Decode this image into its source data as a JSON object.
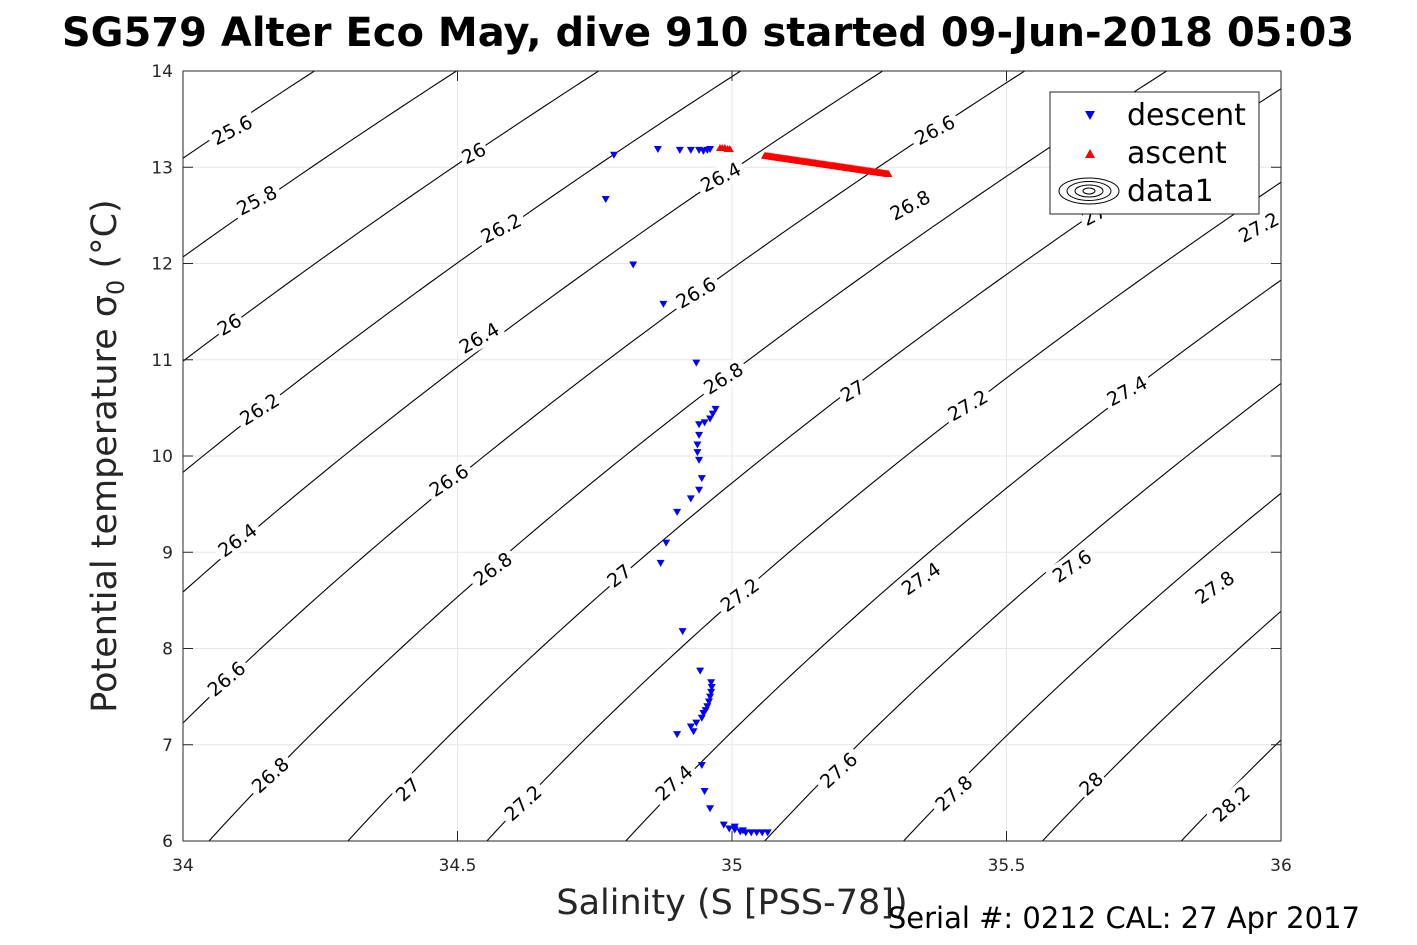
{
  "chart_data": {
    "type": "scatter",
    "title": "SG579 Alter Eco May, dive 910 started 09-Jun-2018 05:03",
    "xlabel": "Salinity (S [PSS-78])",
    "ylabel_main": "Potential temperature ",
    "ylabel_sigma": "σ",
    "ylabel_sub": "0",
    "ylabel_unit": " (°C)",
    "xlim": [
      34,
      36
    ],
    "ylim": [
      6,
      14
    ],
    "xticks": [
      34,
      34.5,
      35,
      35.5,
      36
    ],
    "xtick_labels": [
      "34",
      "34.5",
      "35",
      "35.5",
      "36"
    ],
    "yticks": [
      6,
      7,
      8,
      9,
      10,
      11,
      12,
      13,
      14
    ],
    "ytick_labels": [
      "6",
      "7",
      "8",
      "9",
      "10",
      "11",
      "12",
      "13",
      "14"
    ],
    "grid": true,
    "legend_position": "top-right",
    "legend": [
      "descent",
      "ascent",
      "data1"
    ],
    "contour_levels": [
      25.6,
      25.8,
      26.0,
      26.2,
      26.4,
      26.6,
      26.8,
      27.0,
      27.2,
      27.4,
      27.6,
      27.8,
      28.0,
      28.2
    ],
    "contour_labels": [
      {
        "text": "25.6",
        "s": 34.09,
        "t": 13.38,
        "angle": -27
      },
      {
        "text": "26",
        "s": 34.53,
        "t": 13.14,
        "angle": -27
      },
      {
        "text": "25.8",
        "s": 34.135,
        "t": 12.65,
        "angle": -27
      },
      {
        "text": "26.2",
        "s": 34.58,
        "t": 12.36,
        "angle": -27
      },
      {
        "text": "26.4",
        "s": 34.98,
        "t": 12.89,
        "angle": -27
      },
      {
        "text": "26.6",
        "s": 35.37,
        "t": 13.38,
        "angle": -27
      },
      {
        "text": "26",
        "s": 34.085,
        "t": 11.36,
        "angle": -30
      },
      {
        "text": "26.4",
        "s": 34.54,
        "t": 11.22,
        "angle": -30
      },
      {
        "text": "26.6",
        "s": 34.935,
        "t": 11.69,
        "angle": -30
      },
      {
        "text": "26.8",
        "s": 35.325,
        "t": 12.6,
        "angle": -28
      },
      {
        "text": "26.2",
        "s": 34.14,
        "t": 10.48,
        "angle": -32
      },
      {
        "text": "26.8",
        "s": 34.985,
        "t": 10.8,
        "angle": -32
      },
      {
        "text": "27",
        "s": 35.22,
        "t": 10.67,
        "angle": -30
      },
      {
        "text": "27.2",
        "s": 35.43,
        "t": 10.52,
        "angle": -30
      },
      {
        "text": "27.4",
        "s": 35.72,
        "t": 10.67,
        "angle": -28
      },
      {
        "text": "26.6",
        "s": 34.485,
        "t": 9.74,
        "angle": -33
      },
      {
        "text": "26.4",
        "s": 34.1,
        "t": 9.12,
        "angle": -36
      },
      {
        "text": "26.8",
        "s": 34.565,
        "t": 8.82,
        "angle": -36
      },
      {
        "text": "27",
        "s": 34.795,
        "t": 8.75,
        "angle": -38
      },
      {
        "text": "27.2",
        "s": 35.015,
        "t": 8.55,
        "angle": -36
      },
      {
        "text": "27.4",
        "s": 35.345,
        "t": 8.72,
        "angle": -34
      },
      {
        "text": "27.6",
        "s": 35.62,
        "t": 8.85,
        "angle": -34
      },
      {
        "text": "27.8",
        "s": 35.88,
        "t": 8.63,
        "angle": -34
      },
      {
        "text": "26.6",
        "s": 34.08,
        "t": 7.68,
        "angle": -40
      },
      {
        "text": "26.8",
        "s": 34.16,
        "t": 6.68,
        "angle": -42
      },
      {
        "text": "27",
        "s": 34.41,
        "t": 6.53,
        "angle": -42
      },
      {
        "text": "27.2",
        "s": 34.62,
        "t": 6.39,
        "angle": -42
      },
      {
        "text": "27.4",
        "s": 34.895,
        "t": 6.6,
        "angle": -42
      },
      {
        "text": "27.6",
        "s": 35.195,
        "t": 6.73,
        "angle": -42
      },
      {
        "text": "27.8",
        "s": 35.405,
        "t": 6.49,
        "angle": -42
      },
      {
        "text": "28",
        "s": 35.655,
        "t": 6.59,
        "angle": -42
      },
      {
        "text": "28.2",
        "s": 35.91,
        "t": 6.38,
        "angle": -42
      },
      {
        "text": "27",
        "s": 35.66,
        "t": 12.5,
        "angle": -28
      },
      {
        "text": "27.2",
        "s": 35.96,
        "t": 12.37,
        "angle": -28
      }
    ],
    "series": [
      {
        "name": "descent",
        "color": "#0000ff",
        "marker": "triangle-down",
        "points": [
          [
            34.96,
            13.19
          ],
          [
            34.955,
            13.18
          ],
          [
            34.948,
            13.17
          ],
          [
            34.94,
            13.18
          ],
          [
            34.925,
            13.18
          ],
          [
            34.905,
            13.18
          ],
          [
            34.865,
            13.19
          ],
          [
            34.785,
            13.13
          ],
          [
            34.77,
            12.67
          ],
          [
            34.82,
            11.99
          ],
          [
            34.875,
            11.58
          ],
          [
            34.935,
            10.97
          ],
          [
            34.97,
            10.49
          ],
          [
            34.965,
            10.44
          ],
          [
            34.96,
            10.39
          ],
          [
            34.95,
            10.35
          ],
          [
            34.94,
            10.33
          ],
          [
            34.94,
            10.22
          ],
          [
            34.937,
            10.12
          ],
          [
            34.937,
            10.04
          ],
          [
            34.94,
            9.96
          ],
          [
            34.945,
            9.77
          ],
          [
            34.94,
            9.65
          ],
          [
            34.925,
            9.56
          ],
          [
            34.9,
            9.42
          ],
          [
            34.88,
            9.1
          ],
          [
            34.87,
            8.89
          ],
          [
            34.91,
            8.18
          ],
          [
            34.942,
            7.77
          ],
          [
            34.962,
            7.65
          ],
          [
            34.963,
            7.6
          ],
          [
            34.962,
            7.55
          ],
          [
            34.96,
            7.5
          ],
          [
            34.958,
            7.45
          ],
          [
            34.955,
            7.4
          ],
          [
            34.952,
            7.36
          ],
          [
            34.948,
            7.33
          ],
          [
            34.945,
            7.28
          ],
          [
            34.935,
            7.23
          ],
          [
            34.925,
            7.19
          ],
          [
            34.9,
            7.11
          ],
          [
            34.93,
            7.14
          ],
          [
            34.945,
            6.79
          ],
          [
            34.95,
            6.52
          ],
          [
            34.96,
            6.34
          ],
          [
            34.985,
            6.17
          ],
          [
            34.995,
            6.13
          ],
          [
            35.005,
            6.12
          ],
          [
            35.015,
            6.1
          ],
          [
            35.025,
            6.09
          ],
          [
            35.035,
            6.09
          ],
          [
            35.045,
            6.09
          ],
          [
            35.055,
            6.09
          ],
          [
            35.065,
            6.09
          ],
          [
            35.005,
            6.15
          ],
          [
            35.02,
            6.11
          ]
        ]
      },
      {
        "name": "ascent",
        "color": "#ff0000",
        "marker": "triangle-up",
        "x_range": [
          35.06,
          35.285
        ],
        "y_range": [
          13.12,
          12.93
        ],
        "extra_points": [
          [
            34.982,
            13.2
          ],
          [
            34.987,
            13.2
          ],
          [
            34.992,
            13.19
          ],
          [
            34.978,
            13.2
          ],
          [
            34.996,
            13.19
          ]
        ]
      }
    ]
  }
}
